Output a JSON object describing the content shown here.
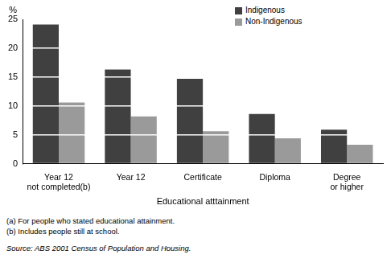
{
  "chart_data": {
    "type": "bar",
    "categories": [
      "Year 12 not completed(b)",
      "Year 12",
      "Certificate",
      "Diploma",
      "Degree or higher"
    ],
    "series": [
      {
        "name": "Indigenous",
        "color": "#404040",
        "values": [
          24.1,
          16.3,
          14.7,
          8.6,
          5.9
        ]
      },
      {
        "name": "Non-Indigenous",
        "color": "#9a9a9a",
        "values": [
          10.6,
          8.2,
          5.6,
          4.4,
          3.3
        ]
      }
    ],
    "y_label": "%",
    "x_label": "Educational atttainment",
    "ylim": [
      0,
      25
    ],
    "yticks": [
      0,
      5,
      10,
      15,
      20,
      25
    ],
    "grid": true,
    "legend": "top",
    "notes": [
      "(a) For people who stated educational attainment.",
      "(b) Includes people still at school."
    ],
    "source": "Source: ABS 2001 Census of Population and Housing."
  }
}
